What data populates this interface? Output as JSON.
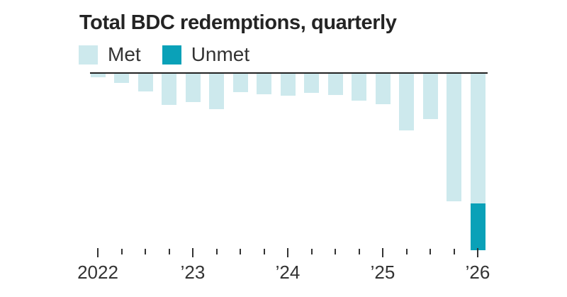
{
  "chart_data": {
    "type": "bar",
    "stacked": true,
    "orientation": "down",
    "title": "Total BDC redemptions, quarterly",
    "categories": [
      "Q1 2022",
      "Q2 2022",
      "Q3 2022",
      "Q4 2022",
      "Q1 2023",
      "Q2 2023",
      "Q3 2023",
      "Q4 2023",
      "Q1 2024",
      "Q2 2024",
      "Q3 2024",
      "Q4 2024",
      "Q1 2025",
      "Q2 2025",
      "Q3 2025",
      "Q4 2025",
      "Q1 2026"
    ],
    "series": [
      {
        "name": "Met",
        "color": "#cde9ed",
        "values": [
          5,
          13,
          25,
          44,
          40,
          50,
          26,
          29,
          31,
          27,
          30,
          38,
          43,
          80,
          64,
          180,
          183
        ]
      },
      {
        "name": "Unmet",
        "color": "#0aa1b8",
        "values": [
          0,
          0,
          0,
          0,
          0,
          0,
          0,
          0,
          0,
          0,
          0,
          0,
          0,
          0,
          0,
          0,
          66
        ]
      }
    ],
    "ylim": [
      0,
      250
    ],
    "grid": false,
    "legend_position": "top-left",
    "x_axis": {
      "tick_interval": "quarterly",
      "year_labels": [
        {
          "text": "2022",
          "tick_index": 0
        },
        {
          "text": "’23",
          "tick_index": 4
        },
        {
          "text": "’24",
          "tick_index": 8
        },
        {
          "text": "’25",
          "tick_index": 12
        },
        {
          "text": "’26",
          "tick_index": 16
        }
      ]
    },
    "colors": {
      "axis_line": "#222222",
      "tick": "#333333",
      "label_text": "#333333",
      "title_text": "#242424"
    }
  }
}
